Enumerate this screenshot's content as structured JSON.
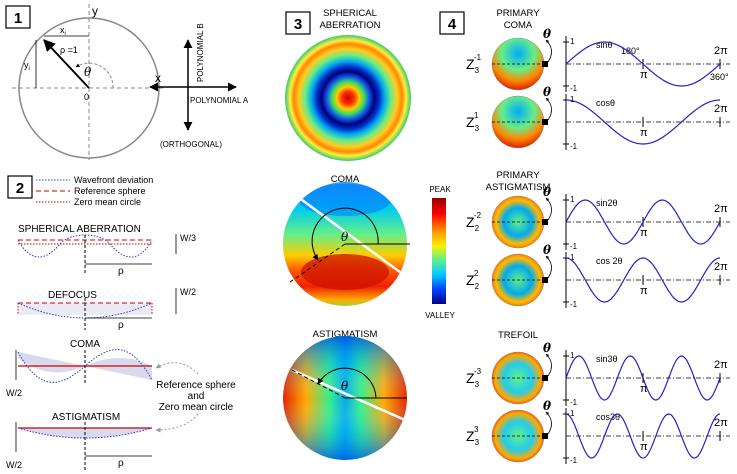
{
  "panel_numbers": [
    "1",
    "2",
    "3",
    "4"
  ],
  "panel1": {
    "axis_y": "y",
    "axis_x": "x",
    "x_i": "x",
    "x_i_sub": "i",
    "y_i": "y",
    "y_i_sub": "i",
    "rho_eq": "ρ =1",
    "theta": "θ",
    "origin": "0",
    "poly_b": "POLYNOMIAL B",
    "poly_a": "POLYNOMIAL A",
    "orthogonal": "(ORTHOGONAL)"
  },
  "panel2": {
    "legend": [
      {
        "label": "Wavefront deviation",
        "color": "#3333cc",
        "style": "dotted"
      },
      {
        "label": "Reference sphere",
        "color": "#cc0000",
        "style": "dashed"
      },
      {
        "label": "Zero mean circle",
        "color": "#cc0000",
        "style": "dotted"
      }
    ],
    "spherical_title": "SPHERICAL ABERRATION",
    "spherical_w": "W/3",
    "defocus_title": "DEFOCUS",
    "defocus_w": "W/2",
    "coma_title": "COMA",
    "coma_w": "W/2",
    "astig_title": "ASTIGMATISM",
    "astig_w": "W/2",
    "rho": "ρ",
    "note_line1": "Reference sphere",
    "note_line2": "and",
    "note_line3": "Zero mean circle"
  },
  "panel3": {
    "spherical_title_1": "SPHERICAL",
    "spherical_title_2": "ABERRATION",
    "coma_title": "COMA",
    "astig_title": "ASTIGMATISM",
    "theta": "θ",
    "colorbar_top": "PEAK",
    "colorbar_bottom": "VALLEY"
  },
  "panel4": {
    "groups": [
      {
        "title_1": "PRIMARY",
        "title_2": "COMA",
        "rows": [
          {
            "z": "Z",
            "sub": "3",
            "sup": "-1",
            "fn": "sinθ",
            "axis_top": "1",
            "axis_bottom": "-1",
            "pi": "π",
            "two_pi": "2π",
            "deg180": "180°",
            "deg360": "360°"
          },
          {
            "z": "Z",
            "sub": "3",
            "sup": "1",
            "fn": "cosθ",
            "axis_top": "1",
            "axis_bottom": "-1",
            "pi": "π",
            "two_pi": "2π"
          }
        ]
      },
      {
        "title_1": "PRIMARY",
        "title_2": "ASTIGMATISM",
        "rows": [
          {
            "z": "Z",
            "sub": "2",
            "sup": "-2",
            "fn": "sin2θ",
            "axis_top": "1",
            "axis_bottom": "-1",
            "pi": "π",
            "two_pi": "2π"
          },
          {
            "z": "Z",
            "sub": "2",
            "sup": "2",
            "fn": "cos 2θ",
            "axis_top": "1",
            "axis_bottom": "-1",
            "pi": "π",
            "two_pi": "2π"
          }
        ]
      },
      {
        "title_1": "TREFOIL",
        "title_2": "",
        "rows": [
          {
            "z": "Z",
            "sub": "3",
            "sup": "-3",
            "fn": "sin3θ",
            "axis_top": "1",
            "axis_bottom": "-1",
            "pi": "π",
            "two_pi": "2π"
          },
          {
            "z": "Z",
            "sub": "3",
            "sup": "3",
            "fn": "cos3θ",
            "axis_top": "1",
            "axis_bottom": "-1",
            "pi": "π",
            "two_pi": "2π"
          }
        ]
      }
    ],
    "theta": "θ"
  }
}
